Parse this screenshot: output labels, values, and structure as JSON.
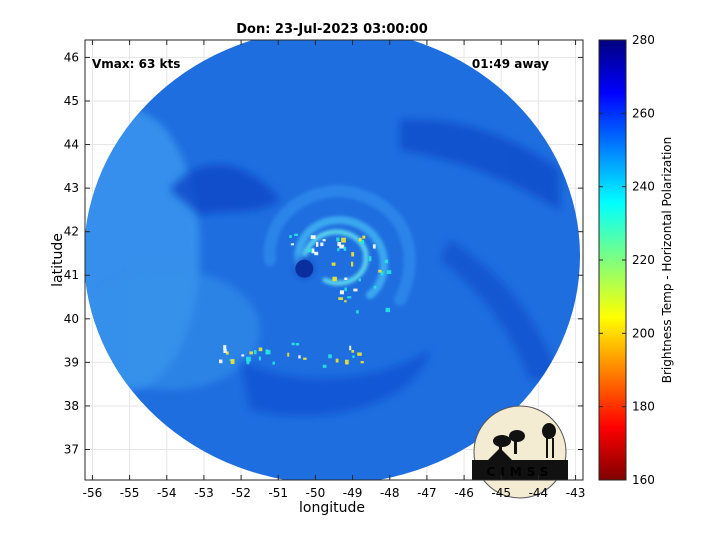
{
  "chart_data": {
    "type": "heatmap",
    "title": "Don: 23-Jul-2023 03:00:00",
    "xlabel": "longitude",
    "ylabel": "latitude",
    "xlim": [
      -56.2,
      -42.8
    ],
    "ylim": [
      36.3,
      46.4
    ],
    "x_ticks": [
      -56,
      -55,
      -54,
      -53,
      -52,
      -51,
      -50,
      -49,
      -48,
      -47,
      -46,
      -45,
      -44,
      -43
    ],
    "y_ticks": [
      37,
      38,
      39,
      40,
      41,
      42,
      43,
      44,
      45,
      46
    ],
    "grid": true,
    "annotations": {
      "vmax": "Vmax: 63 kts",
      "time_away": "01:49 away"
    },
    "colorbar": {
      "label": "Brightness Temp - Horizontal Polarization",
      "range": [
        160,
        280
      ],
      "ticks": [
        160,
        180,
        200,
        220,
        240,
        260,
        280
      ],
      "colormap": "jet"
    },
    "storm_center": {
      "lon": -50.3,
      "lat": 41.15
    },
    "swath_center": {
      "lon": -49.6,
      "lat": 41.3
    },
    "background_value": 252,
    "logo_text": "CIMSS"
  },
  "colors": {
    "swath_base": "#1f6ee0",
    "cold_band": "#0d3fc4",
    "warm_cloud": "#3aa0f0",
    "convective_yellow": "#f5e628",
    "convective_cyan": "#28e6e0"
  }
}
